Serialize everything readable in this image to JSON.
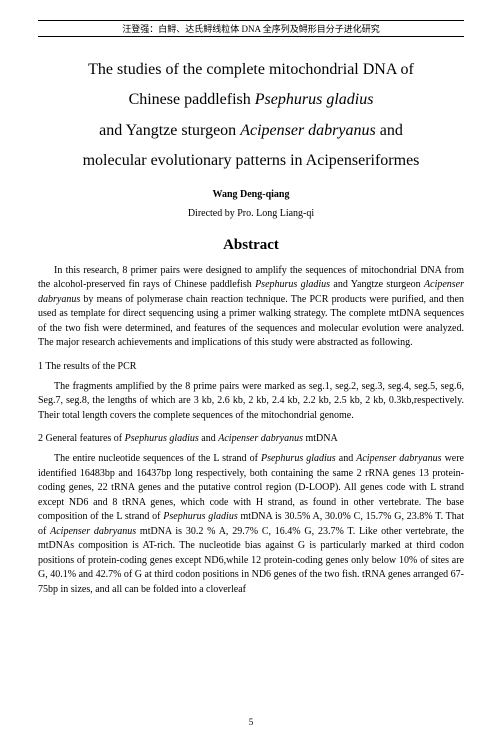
{
  "header": "汪登强：白鲟、达氏鲟线粒体 DNA 全序列及鲟形目分子进化研究",
  "title_line1a": "The studies of the complete mitochondrial DNA of",
  "title_line2a": "Chinese paddlefish ",
  "title_line2b": "Psephurus gladius",
  "title_line3a": "and Yangtze sturgeon ",
  "title_line3b": "Acipenser dabryanus",
  "title_line3c": " and",
  "title_line4": "molecular evolutionary patterns in Acipenseriformes",
  "author": "Wang   Deng-qiang",
  "directed": "Directed by Pro. Long   Liang-qi",
  "abstract_heading": "Abstract",
  "para1a": "In this research, 8 primer pairs were designed to amplify the sequences of mitochondrial DNA from the alcohol-preserved fin rays of Chinese paddlefish ",
  "para1b": "Psephurus gladius",
  "para1c": " and Yangtze sturgeon ",
  "para1d": "Acipenser dabryanus",
  "para1e": " by means of polymerase chain reaction technique. The PCR products were purified, and then used as template for direct sequencing using a primer walking strategy. The complete mtDNA sequences of the two fish were determined, and features of the sequences and molecular evolution were analyzed. The major research achievements and implications of this study were abstracted as following.",
  "sec1": "1 The results of the PCR",
  "para2": "The fragments amplified by the 8 prime pairs were marked as seg.1, seg.2, seg.3, seg.4, seg.5, seg.6, Seg.7, seg.8, the lengths of which are 3 kb, 2.6 kb, 2 kb, 2.4 kb, 2.2 kb, 2.5 kb, 2 kb, 0.3kb,respectively. Their total length covers the complete sequences of the mitochondrial genome.",
  "sec2a": "2 General features of ",
  "sec2b": "Psephurus gladius",
  "sec2c": " and ",
  "sec2d": "Acipenser dabryanus",
  "sec2e": " mtDNA",
  "para3a": "The entire nucleotide sequences of the L strand of ",
  "para3b": "Psephurus gladius",
  "para3c": " and ",
  "para3d": "Acipenser dabryanus",
  "para3e": " were identified 16483bp and 16437bp long respectively, both containing the same 2 rRNA genes 13 protein-coding genes, 22 tRNA genes and the putative control region (D-LOOP). All genes code with L strand except ND6 and 8 tRNA genes, which code with H strand, as found in other vertebrate. The base composition of the L strand of ",
  "para3f": "Psephurus gladius",
  "para3g": " mtDNA is 30.5% A, 30.0% C, 15.7% G, 23.8% T. That of ",
  "para3h": "Acipenser dabryanus",
  "para3i": " mtDNA is 30.2 % A, 29.7% C, 16.4% G, 23.7% T. Like other vertebrate, the mtDNAs composition is AT-rich. The nucleotide bias against G is particularly marked at third codon positions of protein-coding genes except ND6,while 12 protein-coding genes only below 10% of sites are G, 40.1% and 42.7% of G at third codon positions in ND6 genes of the two fish. tRNA genes arranged 67-75bp in sizes, and all can be folded into a cloverleaf",
  "pagenum": "5"
}
